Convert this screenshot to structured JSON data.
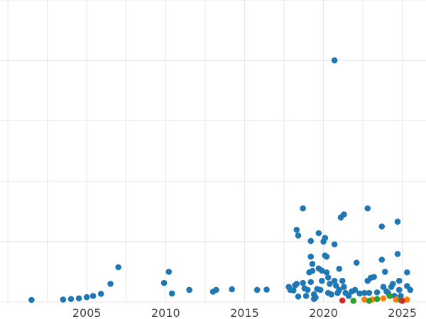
{
  "chart_data": {
    "type": "scatter",
    "xlim": [
      1999.5,
      2026.5
    ],
    "ylim": [
      0,
      100
    ],
    "x_ticks": [
      2005,
      2010,
      2015,
      2020,
      2025
    ],
    "x_tick_labels": [
      "2005",
      "2010",
      "2015",
      "2020",
      "2025"
    ],
    "y_gridlines": [
      0,
      20,
      40,
      60,
      80,
      100
    ],
    "grid": true,
    "legend": "none",
    "series": [
      {
        "color": "#1f77b4",
        "points": [
          [
            2001.5,
            0.7
          ],
          [
            2003.5,
            0.8
          ],
          [
            2004.0,
            1.0
          ],
          [
            2004.5,
            1.2
          ],
          [
            2005.0,
            1.6
          ],
          [
            2005.4,
            2.0
          ],
          [
            2005.9,
            2.7
          ],
          [
            2006.5,
            6.0
          ],
          [
            2007.0,
            11.5
          ],
          [
            2009.9,
            6.3
          ],
          [
            2010.2,
            10.0
          ],
          [
            2010.4,
            2.8
          ],
          [
            2011.5,
            4.0
          ],
          [
            2013.0,
            3.4
          ],
          [
            2013.2,
            4.0
          ],
          [
            2014.2,
            4.2
          ],
          [
            2015.8,
            4.0
          ],
          [
            2016.4,
            4.1
          ],
          [
            2017.8,
            5.0
          ],
          [
            2017.9,
            4.0
          ],
          [
            2018.1,
            3.8
          ],
          [
            2018.2,
            5.5
          ],
          [
            2018.3,
            6.0
          ],
          [
            2018.4,
            1.8
          ],
          [
            2018.3,
            23.9
          ],
          [
            2018.4,
            22.0
          ],
          [
            2018.7,
            31.0
          ],
          [
            2018.7,
            6.3
          ],
          [
            2018.8,
            4.5
          ],
          [
            2018.9,
            2.0
          ],
          [
            2019.0,
            4.0
          ],
          [
            2019.1,
            9.8
          ],
          [
            2019.2,
            15.0
          ],
          [
            2019.2,
            20.2
          ],
          [
            2019.2,
            6.6
          ],
          [
            2019.3,
            12.6
          ],
          [
            2019.3,
            10.3
          ],
          [
            2019.4,
            2.5
          ],
          [
            2019.4,
            1.0
          ],
          [
            2019.5,
            1.5
          ],
          [
            2019.6,
            4.3
          ],
          [
            2019.7,
            22.8
          ],
          [
            2019.7,
            11.1
          ],
          [
            2019.8,
            4.0
          ],
          [
            2019.9,
            10.4
          ],
          [
            2019.9,
            7.0
          ],
          [
            2020.0,
            20.0
          ],
          [
            2020.1,
            21.2
          ],
          [
            2020.1,
            15.4
          ],
          [
            2020.2,
            15.0
          ],
          [
            2020.2,
            9.8
          ],
          [
            2020.3,
            8.1
          ],
          [
            2020.3,
            3.0
          ],
          [
            2020.4,
            6.0
          ],
          [
            2020.5,
            2.5
          ],
          [
            2020.7,
            19.1
          ],
          [
            2020.7,
            7.0
          ],
          [
            2020.8,
            5.4
          ],
          [
            2020.9,
            3.0
          ],
          [
            2021.0,
            11.0
          ],
          [
            2021.0,
            4.0
          ],
          [
            2021.1,
            28.0
          ],
          [
            2021.2,
            7.0
          ],
          [
            2021.3,
            29.0
          ],
          [
            2021.3,
            5.0
          ],
          [
            2021.4,
            3.0
          ],
          [
            2021.6,
            2.0
          ],
          [
            2021.8,
            3.5
          ],
          [
            2022.0,
            4.0
          ],
          [
            2022.1,
            13.0
          ],
          [
            2022.3,
            2.8
          ],
          [
            2022.6,
            3.0
          ],
          [
            2022.8,
            31.0
          ],
          [
            2022.8,
            7.0
          ],
          [
            2022.9,
            3.0
          ],
          [
            2023.0,
            8.0
          ],
          [
            2023.2,
            8.3
          ],
          [
            2023.4,
            3.2
          ],
          [
            2023.7,
            25.0
          ],
          [
            2023.7,
            14.0
          ],
          [
            2023.8,
            5.0
          ],
          [
            2023.9,
            10.0
          ],
          [
            2024.0,
            3.5
          ],
          [
            2024.1,
            3.0
          ],
          [
            2024.3,
            5.0
          ],
          [
            2024.4,
            6.0
          ],
          [
            2024.5,
            2.0
          ],
          [
            2024.7,
            26.6
          ],
          [
            2024.7,
            15.9
          ],
          [
            2024.8,
            7.0
          ],
          [
            2024.8,
            4.0
          ],
          [
            2024.9,
            2.0
          ],
          [
            2025.3,
            5.3
          ],
          [
            2025.3,
            9.8
          ],
          [
            2025.5,
            4.0
          ],
          [
            2020.7,
            80.0
          ]
        ]
      },
      {
        "color": "#ff7f0e",
        "points": [
          [
            2022.6,
            0.8
          ],
          [
            2023.1,
            0.8
          ],
          [
            2023.8,
            1.2
          ],
          [
            2024.6,
            0.8
          ],
          [
            2025.3,
            0.8
          ]
        ]
      },
      {
        "color": "#2ca02c",
        "points": [
          [
            2021.9,
            0.4
          ],
          [
            2022.9,
            0.4
          ],
          [
            2023.4,
            1.0
          ],
          [
            2024.2,
            2.0
          ],
          [
            2024.9,
            0.6
          ]
        ]
      },
      {
        "color": "#d62728",
        "points": [
          [
            2021.2,
            0.5
          ],
          [
            2025.0,
            0.4
          ]
        ]
      }
    ]
  }
}
